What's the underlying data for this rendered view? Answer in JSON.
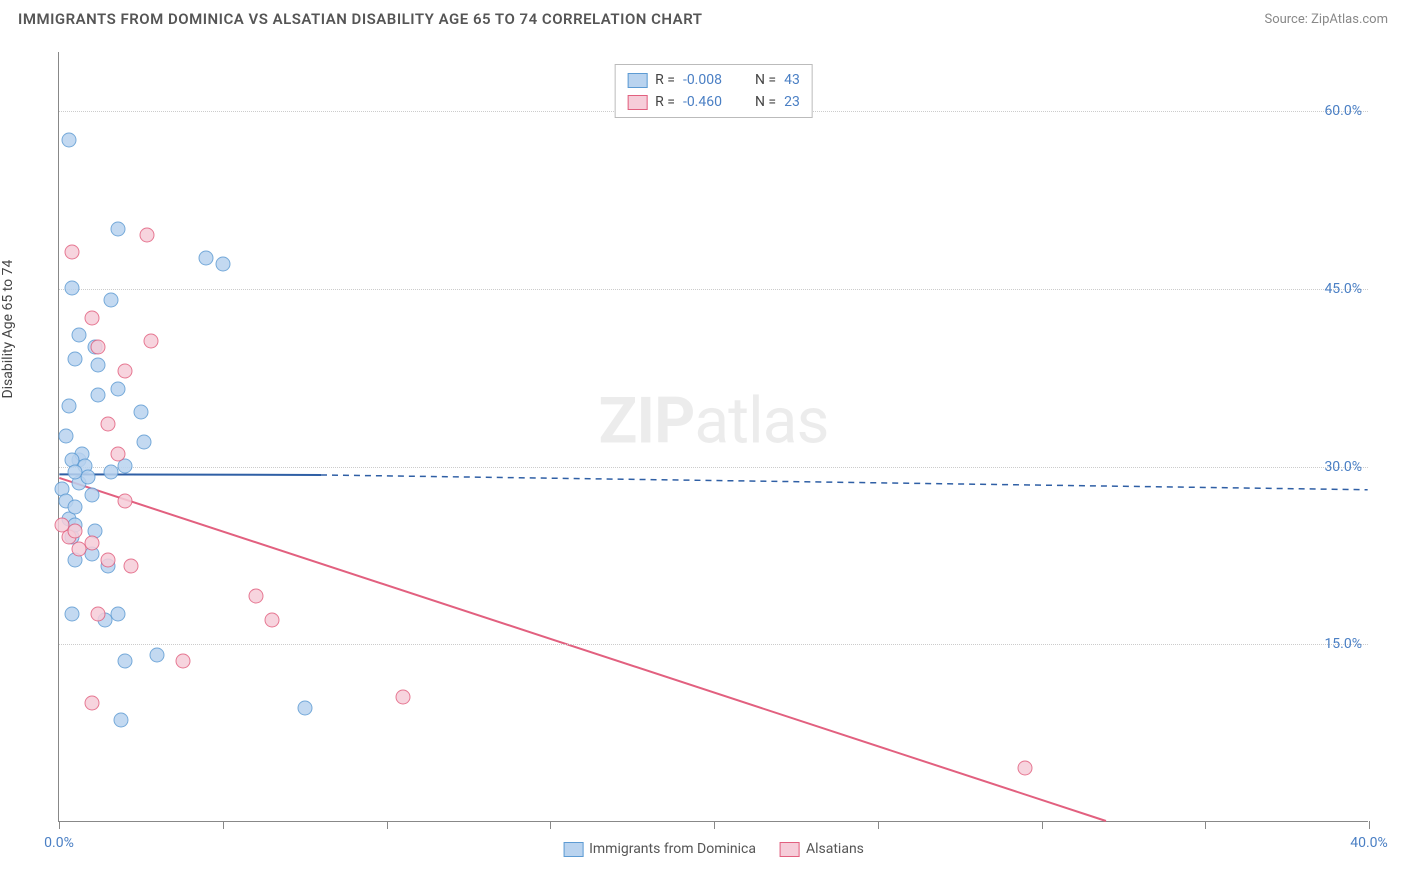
{
  "title": "IMMIGRANTS FROM DOMINICA VS ALSATIAN DISABILITY AGE 65 TO 74 CORRELATION CHART",
  "source": "Source: ZipAtlas.com",
  "watermark_a": "ZIP",
  "watermark_b": "atlas",
  "y_axis_label": "Disability Age 65 to 74",
  "chart": {
    "type": "scatter",
    "xlim": [
      0,
      40
    ],
    "ylim": [
      0,
      65
    ],
    "x_ticks": [
      0,
      5,
      10,
      15,
      20,
      25,
      30,
      35,
      40
    ],
    "x_tick_labels": [
      "0.0%",
      "",
      "",
      "",
      "",
      "",
      "",
      "",
      "40.0%"
    ],
    "y_ticks": [
      15,
      30,
      45,
      60
    ],
    "y_tick_labels": [
      "15.0%",
      "30.0%",
      "45.0%",
      "60.0%"
    ],
    "grid_color": "#cccccc",
    "axis_color": "#888888",
    "background_color": "#ffffff",
    "marker_radius": 7.5,
    "series": [
      {
        "name": "Immigrants from Dominica",
        "fill": "#b9d3ef",
        "stroke": "#5d9bd3",
        "line_color": "#2f5fa5",
        "r": "-0.008",
        "n": "43",
        "regression": {
          "x1": 0,
          "y1": 29.3,
          "x2_solid": 8.0,
          "y2_solid": 29.25,
          "x2": 40,
          "y2": 28.0
        },
        "points": [
          [
            0.1,
            28.0
          ],
          [
            0.2,
            27.0
          ],
          [
            0.3,
            25.5
          ],
          [
            0.4,
            24.0
          ],
          [
            0.5,
            25.0
          ],
          [
            0.5,
            26.5
          ],
          [
            0.6,
            28.5
          ],
          [
            0.6,
            30.5
          ],
          [
            0.7,
            31.0
          ],
          [
            0.8,
            30.0
          ],
          [
            0.9,
            29.0
          ],
          [
            1.0,
            27.5
          ],
          [
            1.1,
            24.5
          ],
          [
            0.4,
            17.5
          ],
          [
            0.5,
            22.0
          ],
          [
            1.0,
            22.5
          ],
          [
            1.5,
            21.5
          ],
          [
            1.4,
            17.0
          ],
          [
            2.0,
            13.5
          ],
          [
            2.6,
            32.0
          ],
          [
            0.3,
            35.0
          ],
          [
            1.2,
            38.5
          ],
          [
            1.2,
            36.0
          ],
          [
            0.5,
            39.0
          ],
          [
            0.6,
            41.0
          ],
          [
            1.1,
            40.0
          ],
          [
            1.8,
            36.5
          ],
          [
            2.5,
            34.5
          ],
          [
            2.0,
            30.0
          ],
          [
            1.6,
            44.0
          ],
          [
            1.6,
            29.5
          ],
          [
            1.8,
            50.0
          ],
          [
            0.4,
            45.0
          ],
          [
            5.0,
            47.0
          ],
          [
            4.5,
            47.5
          ],
          [
            0.3,
            57.5
          ],
          [
            1.9,
            8.5
          ],
          [
            7.5,
            9.5
          ],
          [
            1.8,
            17.5
          ],
          [
            3.0,
            14.0
          ],
          [
            0.2,
            32.5
          ],
          [
            0.4,
            30.5
          ],
          [
            0.5,
            29.5
          ]
        ]
      },
      {
        "name": "Alsatians",
        "fill": "#f6cdd9",
        "stroke": "#e2607f",
        "line_color": "#e2607f",
        "r": "-0.460",
        "n": "23",
        "regression": {
          "x1": 0,
          "y1": 29.0,
          "x2_solid": 32.0,
          "y2_solid": 0.0,
          "x2": 32.0,
          "y2": 0.0
        },
        "points": [
          [
            0.1,
            25.0
          ],
          [
            0.3,
            24.0
          ],
          [
            0.5,
            24.5
          ],
          [
            0.6,
            23.0
          ],
          [
            1.0,
            23.5
          ],
          [
            1.5,
            22.0
          ],
          [
            2.2,
            21.5
          ],
          [
            1.2,
            17.5
          ],
          [
            2.0,
            27.0
          ],
          [
            1.8,
            31.0
          ],
          [
            2.0,
            38.0
          ],
          [
            2.8,
            40.5
          ],
          [
            1.0,
            42.5
          ],
          [
            1.2,
            40.0
          ],
          [
            0.4,
            48.0
          ],
          [
            2.7,
            49.5
          ],
          [
            1.5,
            33.5
          ],
          [
            3.8,
            13.5
          ],
          [
            6.0,
            19.0
          ],
          [
            6.5,
            17.0
          ],
          [
            10.5,
            10.5
          ],
          [
            1.0,
            10.0
          ],
          [
            29.5,
            4.5
          ]
        ]
      }
    ]
  }
}
